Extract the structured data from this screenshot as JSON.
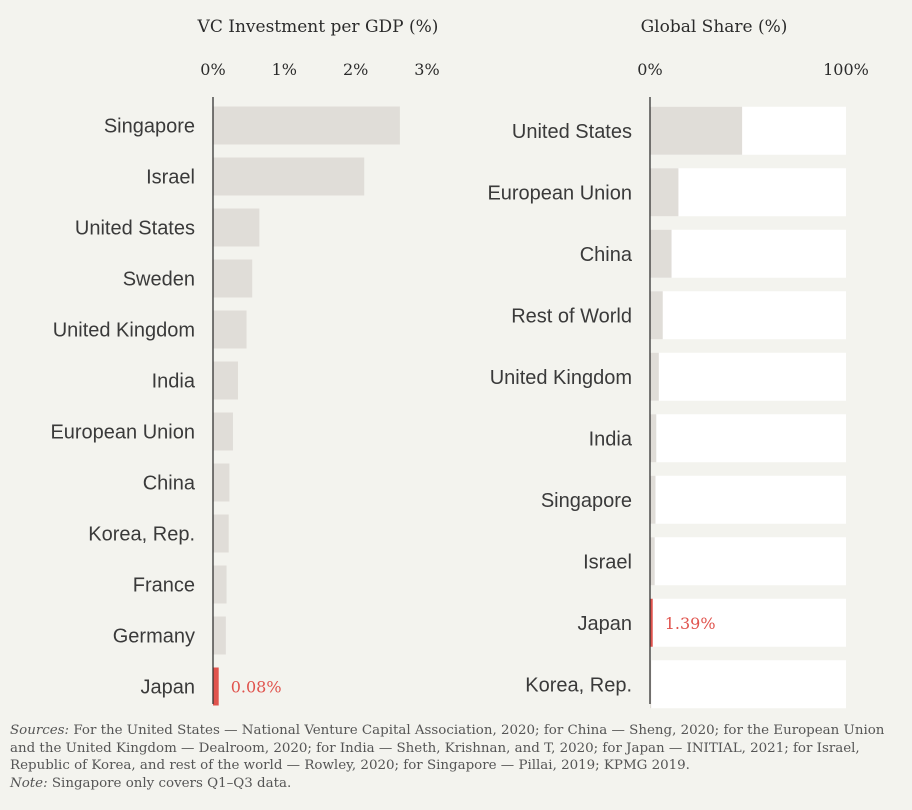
{
  "chart_data": [
    {
      "type": "bar",
      "orientation": "horizontal",
      "title": "VC Investment per GDP (%)",
      "tick_labels": [
        "0%",
        "1%",
        "2%",
        "3%"
      ],
      "xlim": [
        0,
        3
      ],
      "categories": [
        "Singapore",
        "Israel",
        "United States",
        "Sweden",
        "United Kingdom",
        "India",
        "European Union",
        "China",
        "Korea, Rep.",
        "France",
        "Germany",
        "Japan"
      ],
      "values": [
        2.62,
        2.12,
        0.65,
        0.55,
        0.47,
        0.35,
        0.28,
        0.23,
        0.22,
        0.19,
        0.18,
        0.08
      ],
      "highlight": {
        "category": "Japan",
        "label": "0.08%"
      },
      "bar_color": "#e0ddd8",
      "highlight_color": "#e0534d"
    },
    {
      "type": "bar",
      "orientation": "horizontal",
      "title": "Global Share (%)",
      "tick_labels": [
        "0%",
        "100%"
      ],
      "xlim": [
        0,
        100
      ],
      "categories": [
        "United States",
        "European Union",
        "China",
        "Rest of World",
        "United Kingdom",
        "India",
        "Singapore",
        "Israel",
        "Japan",
        "Korea, Rep."
      ],
      "values": [
        47.0,
        14.5,
        11.0,
        6.5,
        4.5,
        3.2,
        2.8,
        2.4,
        1.39,
        0.6
      ],
      "highlight": {
        "category": "Japan",
        "label": "1.39%"
      },
      "bar_color": "#e0ddd8",
      "track_color": "#ffffff",
      "highlight_color": "#e0534d"
    }
  ],
  "footer": {
    "sources_label": "Sources:",
    "sources_text": " For the United States — National Venture Capital Association, 2020; for China — Sheng, 2020; for the European Union and the United Kingdom — Dealroom, 2020; for India — Sheth, Krishnan, and T, 2020; for Japan — INITIAL, 2021; for Israel, Republic of Korea, and rest of the world — Rowley, 2020; for Singapore — Pillai, 2019; KPMG 2019.",
    "note_label": "Note:",
    "note_text": " Singapore only covers Q1–Q3 data."
  }
}
